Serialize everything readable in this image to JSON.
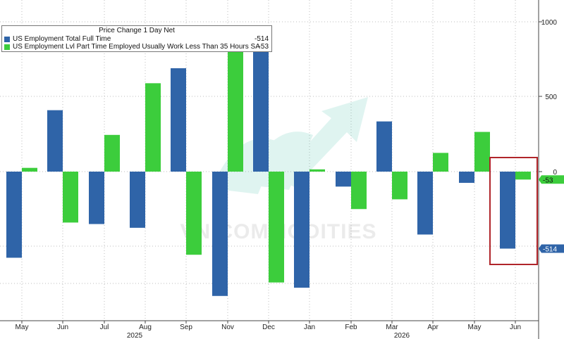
{
  "chart_data": {
    "type": "bar",
    "title": "Price Change 1 Day Net",
    "categories": [
      "May",
      "Jun",
      "Jul",
      "Aug",
      "Sep",
      "Nov",
      "Dec",
      "Jan",
      "Feb",
      "Mar",
      "Apr",
      "May",
      "Jun"
    ],
    "years": [
      "2025",
      "2026"
    ],
    "series": [
      {
        "name": "US Employment Total Full Time",
        "legend_value": "-514",
        "color": "#2f64a8",
        "values": [
          -575,
          410,
          -350,
          -375,
          690,
          -830,
          820,
          -775,
          -100,
          335,
          -420,
          -75,
          -514
        ]
      },
      {
        "name": "US Employment Lvl Part Time Employed Usually Work Less Than 35 Hours SA",
        "legend_value": "-53",
        "color": "#3ccd3c",
        "values": [
          25,
          -340,
          245,
          590,
          -555,
          800,
          -740,
          15,
          -250,
          -185,
          125,
          265,
          -53
        ]
      }
    ],
    "y_ticks": [
      "1000",
      "500",
      "0"
    ],
    "ylim": [
      -1000,
      1000
    ],
    "last_value_labels": [
      "-53",
      "-514"
    ],
    "grid": true,
    "highlight": "last period",
    "watermark": "VN COMMODITIES"
  }
}
